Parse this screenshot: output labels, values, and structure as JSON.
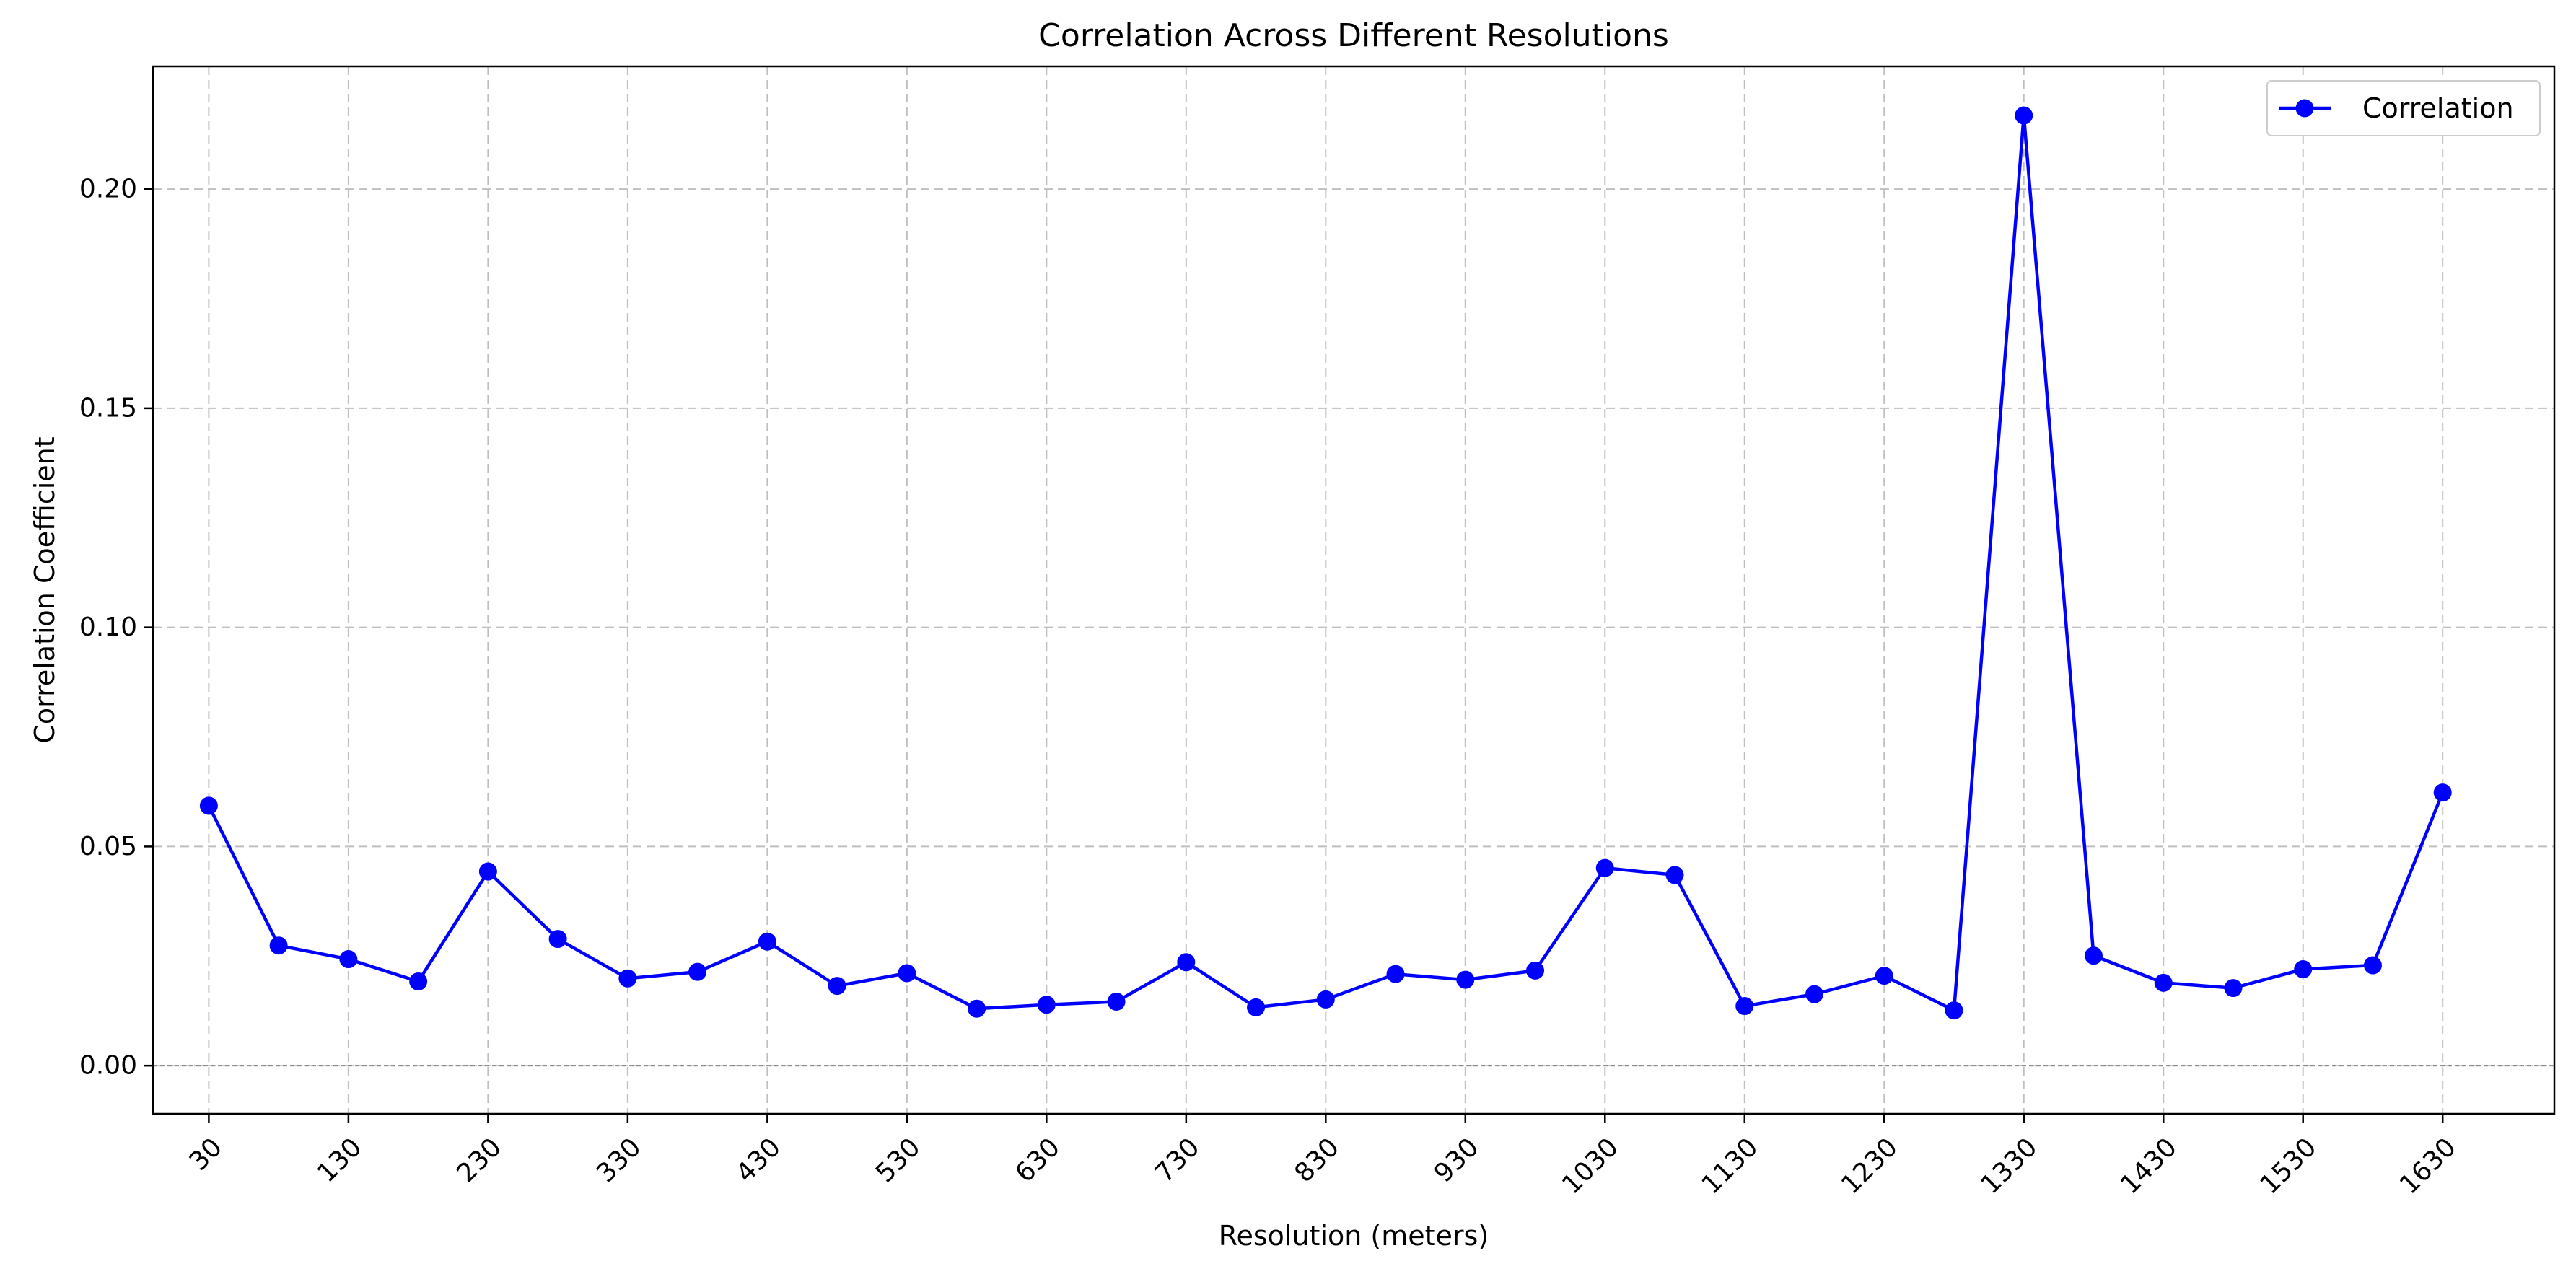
{
  "chart_data": {
    "type": "line",
    "title": "Correlation Across Different Resolutions",
    "xlabel": "Resolution (meters)",
    "ylabel": "Correlation Coefficient",
    "xlim": [
      -10,
      1710
    ],
    "ylim": [
      -0.011,
      0.228
    ],
    "x_ticks": [
      30,
      130,
      230,
      330,
      430,
      530,
      630,
      730,
      830,
      930,
      1030,
      1130,
      1230,
      1330,
      1430,
      1530,
      1630
    ],
    "x_tick_labels": [
      "30",
      "130",
      "230",
      "330",
      "430",
      "530",
      "630",
      "730",
      "830",
      "930",
      "1030",
      "1130",
      "1230",
      "1330",
      "1430",
      "1530",
      "1630"
    ],
    "y_ticks": [
      0.0,
      0.05,
      0.1,
      0.15,
      0.2
    ],
    "y_tick_labels": [
      "0.00",
      "0.05",
      "0.10",
      "0.15",
      "0.20"
    ],
    "grid": true,
    "legend_position": "top-right",
    "reference_line_y": 0,
    "x": [
      30,
      80,
      130,
      180,
      230,
      280,
      330,
      380,
      430,
      480,
      530,
      580,
      630,
      680,
      730,
      780,
      830,
      880,
      930,
      980,
      1030,
      1080,
      1130,
      1180,
      1230,
      1280,
      1330,
      1380,
      1430,
      1480,
      1530,
      1580,
      1630
    ],
    "series": [
      {
        "name": "Correlation",
        "color": "#0000ff",
        "marker": "circle",
        "values": [
          0.0593,
          0.0274,
          0.0243,
          0.0192,
          0.0443,
          0.0289,
          0.0199,
          0.0214,
          0.0283,
          0.0182,
          0.0211,
          0.013,
          0.0139,
          0.0146,
          0.0236,
          0.0133,
          0.0151,
          0.0209,
          0.0196,
          0.0217,
          0.0451,
          0.0435,
          0.0136,
          0.0163,
          0.0205,
          0.0126,
          0.2168,
          0.0251,
          0.0189,
          0.0177,
          0.022,
          0.0229,
          0.0623
        ]
      }
    ]
  }
}
